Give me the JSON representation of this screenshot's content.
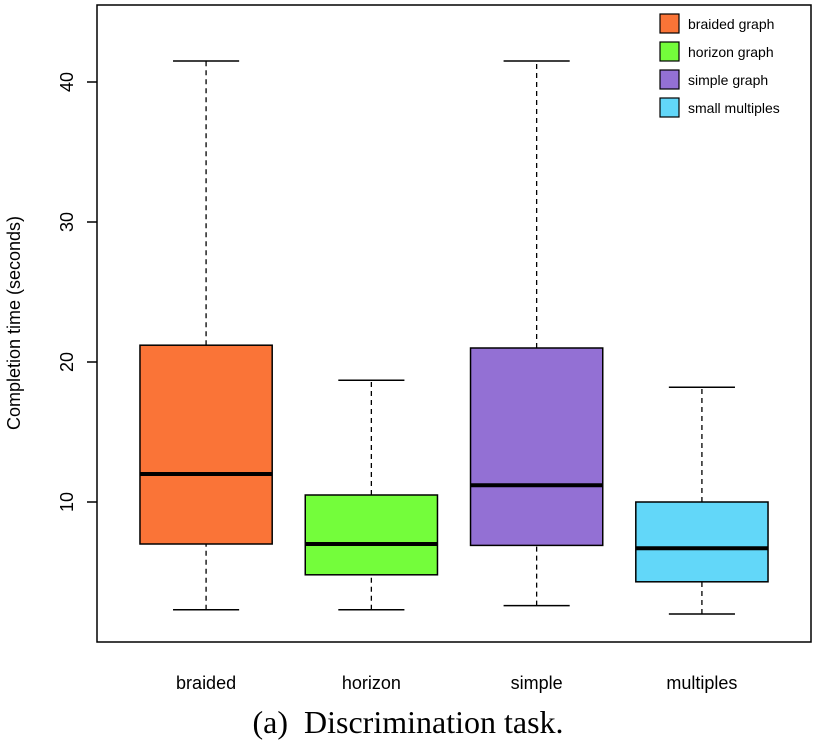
{
  "chart_data": {
    "type": "boxplot",
    "title": "",
    "ylabel": "Completion time (seconds)",
    "xlabel": "",
    "ylim": [
      0,
      45.5
    ],
    "yticks": [
      10,
      20,
      30,
      40
    ],
    "grid": false,
    "legend_position": "top-right",
    "boxes": [
      {
        "category": "braided",
        "min": 2.3,
        "q1": 7.0,
        "median": 12.0,
        "q3": 21.2,
        "max": 41.5,
        "color": "#FA7437"
      },
      {
        "category": "horizon",
        "min": 2.3,
        "q1": 4.8,
        "median": 7.0,
        "q3": 10.5,
        "max": 18.7,
        "color": "#74FD3B"
      },
      {
        "category": "simple",
        "min": 2.6,
        "q1": 6.9,
        "median": 11.2,
        "q3": 21.0,
        "max": 41.5,
        "color": "#9370D4"
      },
      {
        "category": "multiples",
        "min": 2.0,
        "q1": 4.3,
        "median": 6.7,
        "q3": 10.0,
        "max": 18.2,
        "color": "#62D7F9"
      }
    ],
    "legend": [
      {
        "label": "braided graph",
        "color": "#FA7437"
      },
      {
        "label": "horizon graph",
        "color": "#74FD3B"
      },
      {
        "label": "simple graph",
        "color": "#9370D4"
      },
      {
        "label": "small multiples",
        "color": "#62D7F9"
      }
    ]
  },
  "caption": "(a)  Discrimination task."
}
